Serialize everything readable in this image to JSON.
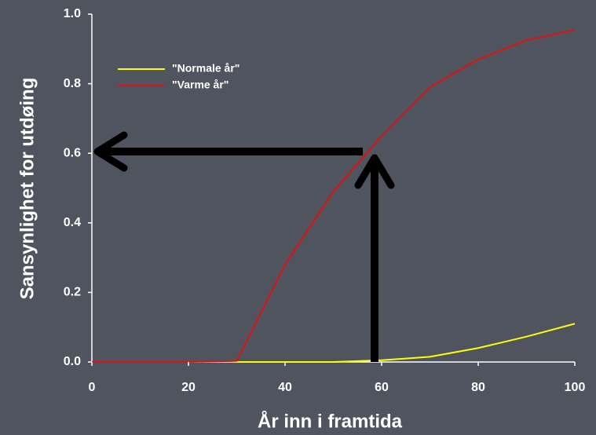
{
  "chart_data": {
    "type": "line",
    "xlabel": "År inn i framtida",
    "ylabel": "Sansynlighet for utdøing",
    "x": [
      0,
      10,
      20,
      30,
      40,
      50,
      60,
      70,
      80,
      90,
      100
    ],
    "series": [
      {
        "name": "\"Normale år\"",
        "color": "#ffff00",
        "values": [
          0,
          0,
          0,
          0,
          0,
          0,
          0.005,
          0.015,
          0.04,
          0.073,
          0.11
        ]
      },
      {
        "name": "\"Varme år\"",
        "color": "#e01010",
        "values": [
          0,
          0,
          0,
          0.003,
          0.28,
          0.49,
          0.65,
          0.79,
          0.87,
          0.925,
          0.955
        ]
      }
    ],
    "xlim": [
      0,
      100
    ],
    "xticks": [
      0,
      20,
      40,
      60,
      80,
      100
    ],
    "ylim": [
      0,
      1
    ],
    "yticks": [
      {
        "value": 0,
        "label": "0.0"
      },
      0.2,
      0.4,
      0.6,
      0.8,
      {
        "value": 1,
        "label": "1.0"
      }
    ],
    "legend": "upper left",
    "grid": false
  }
}
